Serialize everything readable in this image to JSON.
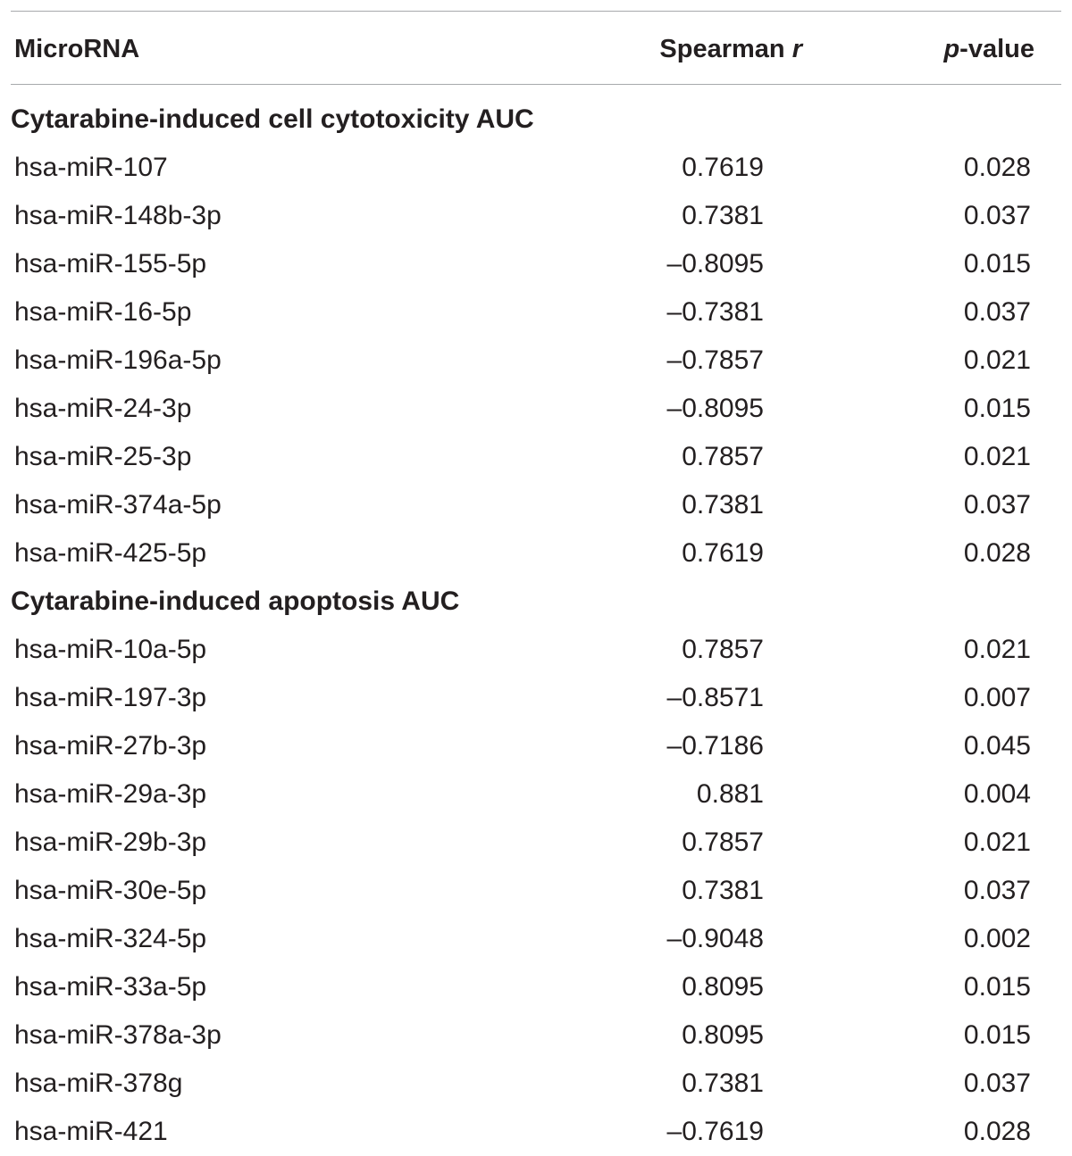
{
  "table": {
    "headers": {
      "mirna": "MicroRNA",
      "spearman_prefix": "Spearman ",
      "spearman_var": "r",
      "p_var": "p",
      "p_suffix": "-value"
    },
    "sections": [
      {
        "title": "Cytarabine-induced cell cytotoxicity AUC",
        "rows": [
          {
            "name": "hsa-miR-107",
            "r": "0.7619",
            "p": "0.028"
          },
          {
            "name": "hsa-miR-148b-3p",
            "r": "0.7381",
            "p": "0.037"
          },
          {
            "name": "hsa-miR-155-5p",
            "r": "–0.8095",
            "p": "0.015"
          },
          {
            "name": "hsa-miR-16-5p",
            "r": "–0.7381",
            "p": "0.037"
          },
          {
            "name": "hsa-miR-196a-5p",
            "r": "–0.7857",
            "p": "0.021"
          },
          {
            "name": "hsa-miR-24-3p",
            "r": "–0.8095",
            "p": "0.015"
          },
          {
            "name": "hsa-miR-25-3p",
            "r": "0.7857",
            "p": "0.021"
          },
          {
            "name": "hsa-miR-374a-5p",
            "r": "0.7381",
            "p": "0.037"
          },
          {
            "name": "hsa-miR-425-5p",
            "r": "0.7619",
            "p": "0.028"
          }
        ]
      },
      {
        "title": "Cytarabine-induced apoptosis AUC",
        "rows": [
          {
            "name": "hsa-miR-10a-5p",
            "r": "0.7857",
            "p": "0.021"
          },
          {
            "name": "hsa-miR-197-3p",
            "r": "–0.8571",
            "p": "0.007"
          },
          {
            "name": "hsa-miR-27b-3p",
            "r": "–0.7186",
            "p": "0.045"
          },
          {
            "name": "hsa-miR-29a-3p",
            "r": "0.881",
            "p": "0.004"
          },
          {
            "name": "hsa-miR-29b-3p",
            "r": "0.7857",
            "p": "0.021"
          },
          {
            "name": "hsa-miR-30e-5p",
            "r": "0.7381",
            "p": "0.037"
          },
          {
            "name": "hsa-miR-324-5p",
            "r": "–0.9048",
            "p": "0.002"
          },
          {
            "name": "hsa-miR-33a-5p",
            "r": "0.8095",
            "p": "0.015"
          },
          {
            "name": "hsa-miR-378a-3p",
            "r": "0.8095",
            "p": "0.015"
          },
          {
            "name": "hsa-miR-378g",
            "r": "0.7381",
            "p": "0.037"
          },
          {
            "name": "hsa-miR-421",
            "r": "–0.7619",
            "p": "0.028"
          }
        ]
      }
    ]
  }
}
